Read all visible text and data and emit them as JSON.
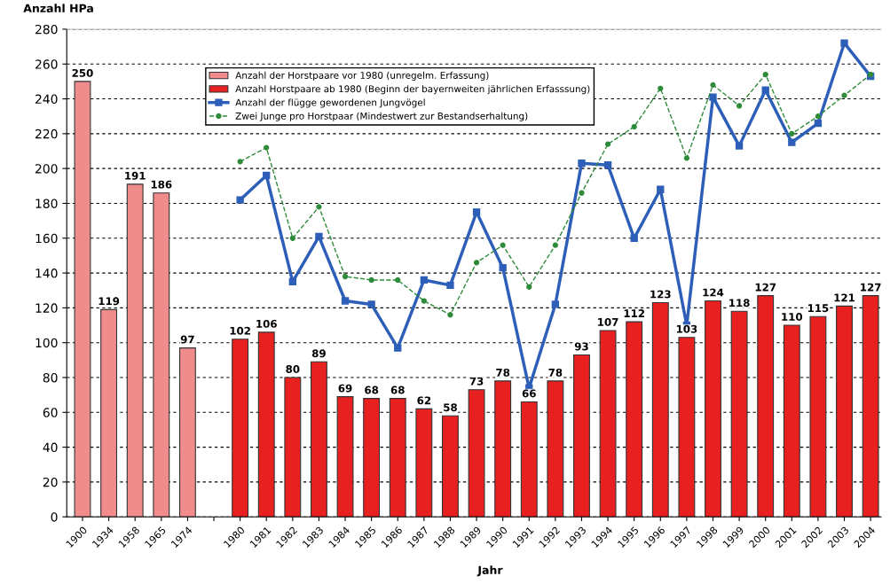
{
  "chart_data": {
    "type": "bar",
    "ylabel": "Anzahl HPa",
    "xlabel": "Jahr",
    "categories": [
      "1900",
      "1934",
      "1958",
      "1965",
      "1974",
      null,
      "1980",
      "1981",
      "1982",
      "1983",
      "1984",
      "1985",
      "1986",
      "1987",
      "1988",
      "1989",
      "1990",
      "1991",
      "1992",
      "1993",
      "1994",
      "1995",
      "1996",
      "1997",
      "1998",
      "1999",
      "2000",
      "2001",
      "2002",
      "2003",
      "2004"
    ],
    "series": [
      {
        "name": "Anzahl der Horstpaare vor 1980 (unregelm. Erfassung)",
        "color": "#f08c8c",
        "values": [
          250,
          119,
          191,
          186,
          97,
          null,
          null,
          null,
          null,
          null,
          null,
          null,
          null,
          null,
          null,
          null,
          null,
          null,
          null,
          null,
          null,
          null,
          null,
          null,
          null,
          null,
          null,
          null,
          null,
          null,
          null
        ],
        "value_labels": [
          "250",
          "119",
          "191",
          "186",
          "97",
          null,
          null,
          null,
          null,
          null,
          null,
          null,
          null,
          null,
          null,
          null,
          null,
          null,
          null,
          null,
          null,
          null,
          null,
          null,
          null,
          null,
          null,
          null,
          null,
          null,
          null
        ]
      },
      {
        "name": "Anzahl Horstpaare ab 1980 (Beginn der bayernweiten jährlichen Erfasssung)",
        "color": "#e82020",
        "values": [
          null,
          null,
          null,
          null,
          null,
          null,
          102,
          106,
          80,
          89,
          69,
          68,
          68,
          62,
          58,
          73,
          78,
          66,
          78,
          93,
          107,
          112,
          123,
          103,
          124,
          118,
          127,
          110,
          115,
          121,
          127
        ],
        "value_labels": [
          null,
          null,
          null,
          null,
          null,
          null,
          "102",
          "106",
          "80",
          "89",
          "69",
          "68",
          "68",
          "62",
          "58",
          "73",
          "78",
          "66",
          "78",
          "93",
          "107",
          "112",
          "123",
          "103",
          "124",
          "118",
          "127",
          "110",
          "115",
          "121",
          "127"
        ]
      },
      {
        "name": "Anzahl der flügge gewordenen Jungvögel",
        "type": "line",
        "color": "#2e5fb8",
        "marker": "square",
        "line_style": "solid",
        "values": [
          null,
          null,
          null,
          null,
          null,
          null,
          182,
          196,
          135,
          161,
          124,
          122,
          97,
          136,
          133,
          175,
          143,
          74,
          122,
          203,
          202,
          160,
          188,
          110,
          241,
          213,
          245,
          215,
          226,
          272,
          253
        ]
      },
      {
        "name": "Zwei Junge pro Horstpaar (Mindestwert zur Bestandserhaltung)",
        "type": "line",
        "color": "#2e8b3a",
        "marker": "circle",
        "line_style": "dashed",
        "values": [
          null,
          null,
          null,
          null,
          null,
          null,
          204,
          212,
          160,
          178,
          138,
          136,
          136,
          124,
          116,
          146,
          156,
          132,
          156,
          186,
          214,
          224,
          246,
          206,
          248,
          236,
          254,
          220,
          230,
          242,
          254
        ]
      }
    ],
    "ylim": [
      0,
      280
    ],
    "yticks": [
      0,
      20,
      40,
      60,
      80,
      100,
      120,
      140,
      160,
      180,
      200,
      220,
      240,
      260,
      280
    ],
    "grid": "y",
    "legend": "top"
  }
}
